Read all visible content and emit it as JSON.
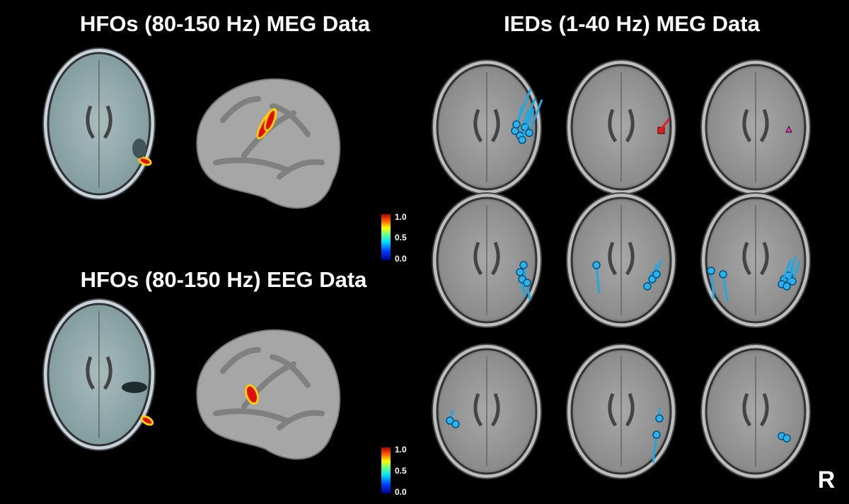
{
  "panels": [
    {
      "title": "HFOs (80-150 Hz) MEG Data",
      "colorbar_ticks": [
        "1.0",
        "0.5",
        "0.0"
      ]
    },
    {
      "title": "HFOs (80-150 Hz) EEG Data",
      "colorbar_ticks": [
        "1.0",
        "0.5",
        "0.0"
      ]
    }
  ],
  "ied_panel": {
    "title": "IEDs (1-40 Hz) MEG Data"
  },
  "orientation_label": "R"
}
